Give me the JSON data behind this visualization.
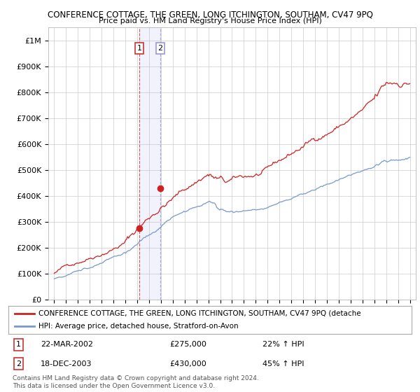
{
  "title": "CONFERENCE COTTAGE, THE GREEN, LONG ITCHINGTON, SOUTHAM, CV47 9PQ",
  "subtitle": "Price paid vs. HM Land Registry's House Price Index (HPI)",
  "ytick_labels": [
    "£0",
    "£100K",
    "£200K",
    "£300K",
    "£400K",
    "£500K",
    "£600K",
    "£700K",
    "£800K",
    "£900K",
    "£1M"
  ],
  "yticks": [
    0,
    100000,
    200000,
    300000,
    400000,
    500000,
    600000,
    700000,
    800000,
    900000,
    1000000
  ],
  "hpi_color": "#7799cc",
  "price_color": "#cc2222",
  "marker1_price": 275000,
  "marker2_price": 430000,
  "sale1_year": 2002.21,
  "sale2_year": 2003.96,
  "sale1_date": "22-MAR-2002",
  "sale1_price_str": "£275,000",
  "sale1_hpi": "22% ↑ HPI",
  "sale2_date": "18-DEC-2003",
  "sale2_price_str": "£430,000",
  "sale2_hpi": "45% ↑ HPI",
  "legend_label1": "CONFERENCE COTTAGE, THE GREEN, LONG ITCHINGTON, SOUTHAM, CV47 9PQ (detache",
  "legend_label2": "HPI: Average price, detached house, Stratford-on-Avon",
  "footnote": "Contains HM Land Registry data © Crown copyright and database right 2024.\nThis data is licensed under the Open Government Licence v3.0.",
  "background_color": "#ffffff"
}
